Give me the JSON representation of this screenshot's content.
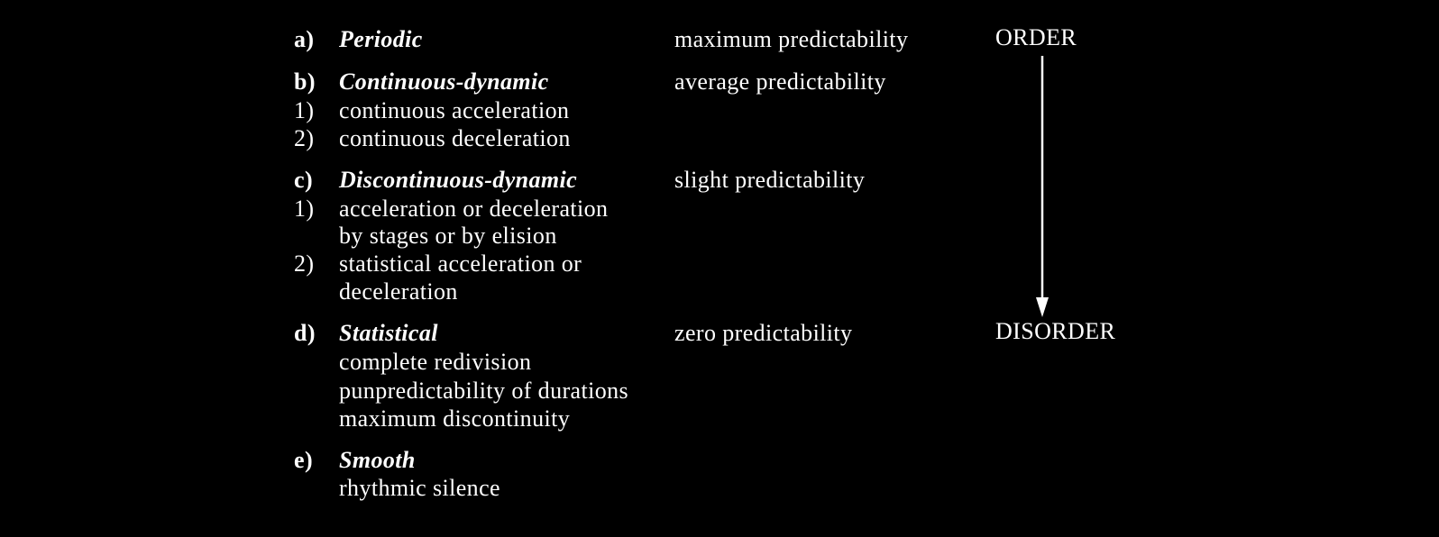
{
  "items": [
    {
      "label": "a)",
      "title": "Periodic",
      "predictability": "maximum predictability"
    },
    {
      "label": "b)",
      "title": "Continuous-dynamic",
      "predictability": "average predictability",
      "sub": [
        {
          "label": "1)",
          "text": "continuous acceleration"
        },
        {
          "label": "2)",
          "text": "continuous deceleration"
        }
      ]
    },
    {
      "label": "c)",
      "title": "Discontinuous-dynamic",
      "predictability": "slight predictability",
      "sub": [
        {
          "label": "1)",
          "text": "acceleration or deceleration",
          "text2": "by stages or by elision"
        },
        {
          "label": "2)",
          "text": "statistical acceleration or",
          "text2": "deceleration"
        }
      ]
    },
    {
      "label": "d)",
      "title": "Statistical",
      "predictability": "zero predictability",
      "lines": [
        "complete redivision",
        "punpredictability of durations",
        "maximum discontinuity"
      ]
    },
    {
      "label": "e)",
      "title": "Smooth",
      "lines": [
        "rhythmic silence"
      ]
    }
  ],
  "scale": {
    "top": "ORDER",
    "bottom": "DISORDER"
  }
}
